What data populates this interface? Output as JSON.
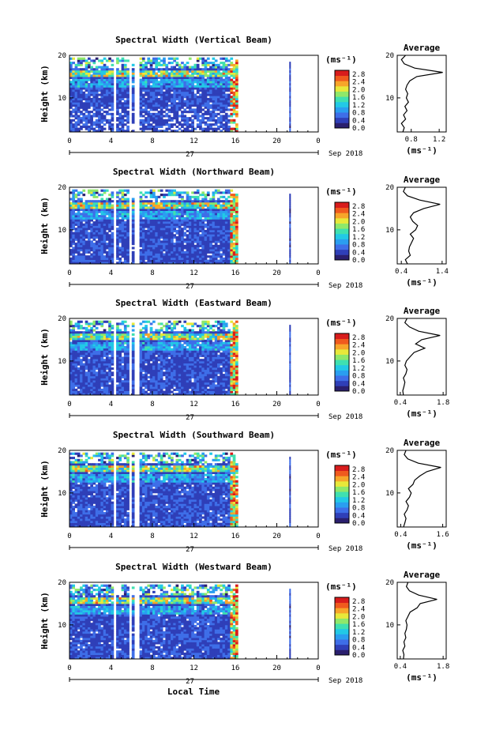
{
  "colors": {
    "colormap": [
      "#2a1f6e",
      "#2f3fb8",
      "#3e6ee8",
      "#2a9ef0",
      "#22c9e6",
      "#3fe0b0",
      "#8fe86a",
      "#e8e83a",
      "#f7a52a",
      "#f05a1e",
      "#d81c1c"
    ]
  },
  "common": {
    "xlabel": "Local Time",
    "ylabel": "Height (km)",
    "day_label": "27",
    "month_label": "Sep 2018",
    "unit_label": "(ms⁻¹)",
    "avg_title": "Average",
    "avg_unit": "(ms⁻¹)"
  },
  "chart_data": [
    {
      "type": "heatmap",
      "title": "Spectral Width (Vertical Beam)",
      "xlabel": "Local Time",
      "ylabel": "Height (km)",
      "xlim": [
        0,
        24
      ],
      "ylim": [
        2,
        20
      ],
      "xticks": [
        "0",
        "4",
        "8",
        "12",
        "16",
        "20",
        "0"
      ],
      "yticks": [
        "10",
        "20"
      ],
      "colorbar": {
        "ticks": [
          "0.0",
          "0.4",
          "0.8",
          "1.2",
          "1.6",
          "2.0",
          "2.4",
          "2.8"
        ],
        "range": [
          0,
          3.0
        ]
      },
      "profile": {
        "title": "Average",
        "xticks": [
          "0.8",
          "1.2"
        ],
        "xlim": [
          0.6,
          1.3
        ],
        "heights": [
          2,
          3,
          4,
          5,
          6,
          7,
          8,
          9,
          10,
          11,
          12,
          13,
          14,
          15,
          16,
          17,
          18,
          19,
          20
        ],
        "values": [
          0.68,
          0.7,
          0.66,
          0.72,
          0.69,
          0.74,
          0.71,
          0.76,
          0.73,
          0.75,
          0.72,
          0.74,
          0.78,
          0.88,
          1.25,
          0.85,
          0.7,
          0.66,
          0.72
        ]
      }
    },
    {
      "type": "heatmap",
      "title": "Spectral Width (Northward Beam)",
      "xlabel": "Local Time",
      "ylabel": "Height (km)",
      "xlim": [
        0,
        24
      ],
      "ylim": [
        2,
        20
      ],
      "xticks": [
        "0",
        "4",
        "8",
        "12",
        "16",
        "20",
        "0"
      ],
      "yticks": [
        "10",
        "20"
      ],
      "colorbar": {
        "ticks": [
          "0.0",
          "0.4",
          "0.8",
          "1.2",
          "1.6",
          "2.0",
          "2.4",
          "2.8"
        ],
        "range": [
          0,
          3.0
        ]
      },
      "profile": {
        "title": "Average",
        "xticks": [
          "0.4",
          "1.4"
        ],
        "xlim": [
          0.3,
          1.5
        ],
        "heights": [
          2,
          3,
          4,
          5,
          6,
          7,
          8,
          9,
          10,
          11,
          12,
          13,
          14,
          15,
          16,
          17,
          18,
          19,
          20
        ],
        "values": [
          0.55,
          0.5,
          0.62,
          0.58,
          0.6,
          0.65,
          0.7,
          0.62,
          0.75,
          0.8,
          0.68,
          0.62,
          0.7,
          0.95,
          1.35,
          0.85,
          0.55,
          0.45,
          0.5
        ]
      }
    },
    {
      "type": "heatmap",
      "title": "Spectral Width (Eastward Beam)",
      "xlabel": "Local Time",
      "ylabel": "Height (km)",
      "xlim": [
        0,
        24
      ],
      "ylim": [
        2,
        20
      ],
      "xticks": [
        "0",
        "4",
        "8",
        "12",
        "16",
        "20",
        "0"
      ],
      "yticks": [
        "10",
        "20"
      ],
      "colorbar": {
        "ticks": [
          "0.0",
          "0.4",
          "0.8",
          "1.2",
          "1.6",
          "2.0",
          "2.4",
          "2.8"
        ],
        "range": [
          0,
          3.0
        ]
      },
      "profile": {
        "title": "Average",
        "xticks": [
          "0.4",
          "1.8"
        ],
        "xlim": [
          0.3,
          1.9
        ],
        "heights": [
          2,
          3,
          4,
          5,
          6,
          7,
          8,
          9,
          10,
          11,
          12,
          13,
          14,
          15,
          16,
          17,
          18,
          19,
          20
        ],
        "values": [
          0.5,
          0.48,
          0.52,
          0.55,
          0.5,
          0.58,
          0.62,
          0.55,
          0.6,
          0.72,
          0.85,
          1.2,
          0.9,
          1.1,
          1.7,
          1.0,
          0.7,
          0.55,
          0.62
        ]
      }
    },
    {
      "type": "heatmap",
      "title": "Spectral Width (Southward Beam)",
      "xlabel": "Local Time",
      "ylabel": "Height (km)",
      "xlim": [
        0,
        24
      ],
      "ylim": [
        2,
        20
      ],
      "xticks": [
        "0",
        "4",
        "8",
        "12",
        "16",
        "20",
        "0"
      ],
      "yticks": [
        "10",
        "20"
      ],
      "colorbar": {
        "ticks": [
          "0.0",
          "0.4",
          "0.8",
          "1.2",
          "1.6",
          "2.0",
          "2.4",
          "2.8"
        ],
        "range": [
          0,
          3.0
        ]
      },
      "profile": {
        "title": "Average",
        "xticks": [
          "0.4",
          "1.6"
        ],
        "xlim": [
          0.3,
          1.7
        ],
        "heights": [
          2,
          3,
          4,
          5,
          6,
          7,
          8,
          9,
          10,
          11,
          12,
          13,
          14,
          15,
          16,
          17,
          18,
          19,
          20
        ],
        "values": [
          0.48,
          0.52,
          0.55,
          0.5,
          0.58,
          0.62,
          0.55,
          0.65,
          0.7,
          0.62,
          0.75,
          0.8,
          0.95,
          1.15,
          1.55,
          0.9,
          0.6,
          0.5,
          0.55
        ]
      }
    },
    {
      "type": "heatmap",
      "title": "Spectral Width (Westward Beam)",
      "xlabel": "Local Time",
      "ylabel": "Height (km)",
      "xlim": [
        0,
        24
      ],
      "ylim": [
        2,
        20
      ],
      "xticks": [
        "0",
        "4",
        "8",
        "12",
        "16",
        "20",
        "0"
      ],
      "yticks": [
        "10",
        "20"
      ],
      "colorbar": {
        "ticks": [
          "0.0",
          "0.4",
          "0.8",
          "1.2",
          "1.6",
          "2.0",
          "2.4",
          "2.8"
        ],
        "range": [
          0,
          3.0
        ]
      },
      "profile": {
        "title": "Average",
        "xticks": [
          "0.4",
          "1.8"
        ],
        "xlim": [
          0.3,
          1.9
        ],
        "heights": [
          2,
          3,
          4,
          5,
          6,
          7,
          8,
          9,
          10,
          11,
          12,
          13,
          14,
          15,
          16,
          17,
          18,
          19,
          20
        ],
        "values": [
          0.5,
          0.52,
          0.48,
          0.55,
          0.52,
          0.58,
          0.55,
          0.6,
          0.62,
          0.58,
          0.65,
          0.72,
          0.95,
          1.05,
          1.6,
          1.0,
          0.7,
          0.6,
          0.65
        ]
      }
    }
  ]
}
